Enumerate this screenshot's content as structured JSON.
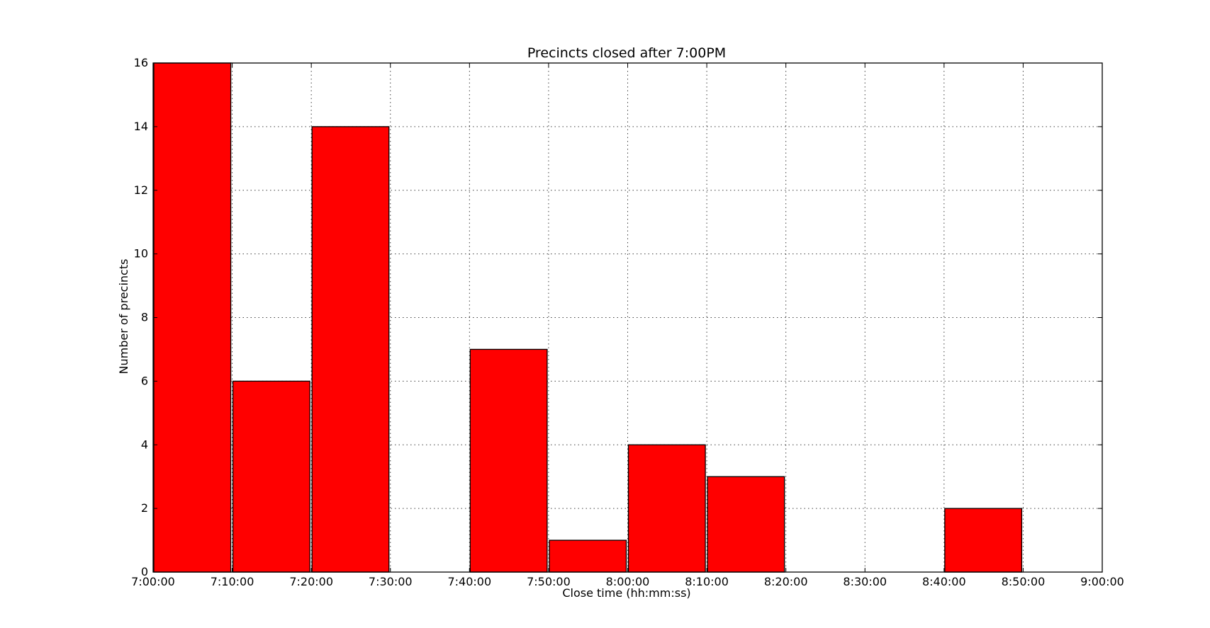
{
  "chart_data": {
    "type": "bar",
    "title": "Precincts closed after 7:00PM",
    "xlabel": "Close time (hh:mm:ss)",
    "ylabel": "Number of precincts",
    "x_tick_labels": [
      "7:00:00",
      "7:10:00",
      "7:20:00",
      "7:30:00",
      "7:40:00",
      "7:50:00",
      "8:00:00",
      "8:10:00",
      "8:20:00",
      "8:30:00",
      "8:40:00",
      "8:50:00",
      "9:00:00"
    ],
    "y_tick_labels": [
      "0",
      "2",
      "4",
      "6",
      "8",
      "10",
      "12",
      "14",
      "16"
    ],
    "bins": [
      {
        "start": "7:00:00",
        "end": "7:10:00",
        "value": 16
      },
      {
        "start": "7:10:00",
        "end": "7:20:00",
        "value": 6
      },
      {
        "start": "7:20:00",
        "end": "7:30:00",
        "value": 14
      },
      {
        "start": "7:30:00",
        "end": "7:40:00",
        "value": 0
      },
      {
        "start": "7:40:00",
        "end": "7:50:00",
        "value": 7
      },
      {
        "start": "7:50:00",
        "end": "8:00:00",
        "value": 1
      },
      {
        "start": "8:00:00",
        "end": "8:10:00",
        "value": 4
      },
      {
        "start": "8:10:00",
        "end": "8:20:00",
        "value": 3
      },
      {
        "start": "8:20:00",
        "end": "8:30:00",
        "value": 0
      },
      {
        "start": "8:30:00",
        "end": "8:40:00",
        "value": 0
      },
      {
        "start": "8:40:00",
        "end": "8:50:00",
        "value": 2
      },
      {
        "start": "8:50:00",
        "end": "9:00:00",
        "value": 0
      }
    ],
    "xlim": [
      "7:00:00",
      "9:00:00"
    ],
    "ylim": [
      0,
      16
    ],
    "grid": true,
    "bar_color": "#ff0000"
  }
}
